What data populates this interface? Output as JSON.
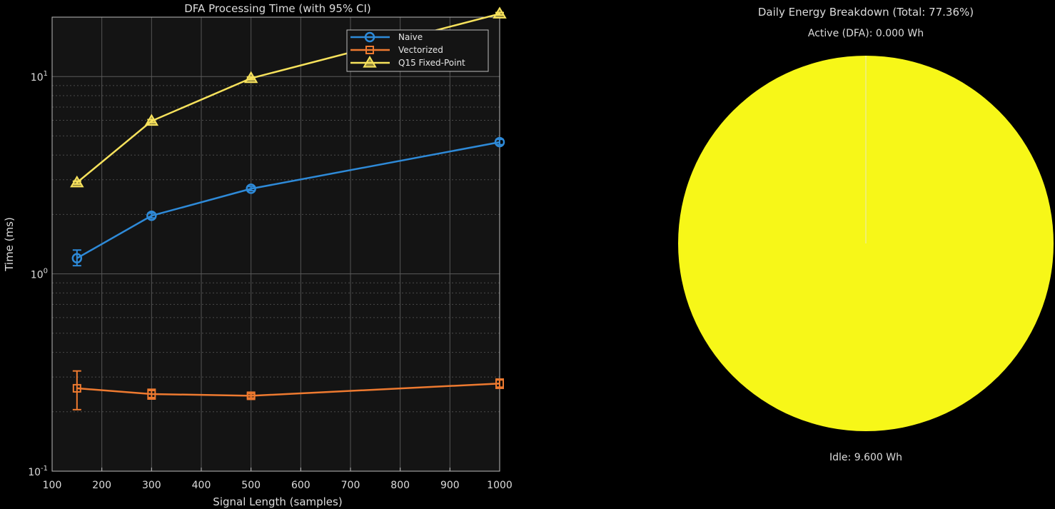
{
  "chart_data": [
    {
      "type": "line",
      "title": "DFA Processing Time (with 95% CI)",
      "xlabel": "Signal Length (samples)",
      "ylabel": "Time (ms)",
      "xlim": [
        100,
        1000
      ],
      "ylim": [
        0.1,
        20
      ],
      "yscale": "log",
      "grid": true,
      "legend_position": "top-right",
      "x_ticks": [
        "100",
        "200",
        "300",
        "400",
        "500",
        "600",
        "700",
        "800",
        "900",
        "1000"
      ],
      "x": [
        150,
        300,
        500,
        1000
      ],
      "series": [
        {
          "name": "Naive",
          "marker": "circle",
          "color": "#2e8ad8",
          "values": [
            1.2,
            1.97,
            2.7,
            4.65
          ],
          "ci_low": [
            1.1,
            1.92,
            2.64,
            4.52
          ],
          "ci_high": [
            1.32,
            2.03,
            2.77,
            4.8
          ]
        },
        {
          "name": "Vectorized",
          "marker": "square",
          "color": "#ee7a30",
          "values": [
            0.263,
            0.246,
            0.241,
            0.278
          ],
          "ci_low": [
            0.205,
            0.232,
            0.235,
            0.263
          ],
          "ci_high": [
            0.322,
            0.26,
            0.247,
            0.293
          ]
        },
        {
          "name": "Q15 Fixed-Point",
          "marker": "triangle",
          "color": "#f7e25c",
          "values": [
            2.9,
            5.95,
            9.8,
            20.8
          ],
          "ci_low": [
            2.85,
            5.85,
            9.65,
            20.5
          ],
          "ci_high": [
            2.95,
            6.05,
            9.95,
            21.1
          ]
        }
      ]
    },
    {
      "type": "pie",
      "title": "Daily Energy Breakdown (Total: 77.36%)",
      "slices": [
        {
          "label": "Active (DFA): 0.000 Wh",
          "value": 0.0,
          "color": "#f7e25c"
        },
        {
          "label": "Idle: 9.600 Wh",
          "value": 9.6,
          "color": "#f7f718"
        }
      ]
    }
  ]
}
